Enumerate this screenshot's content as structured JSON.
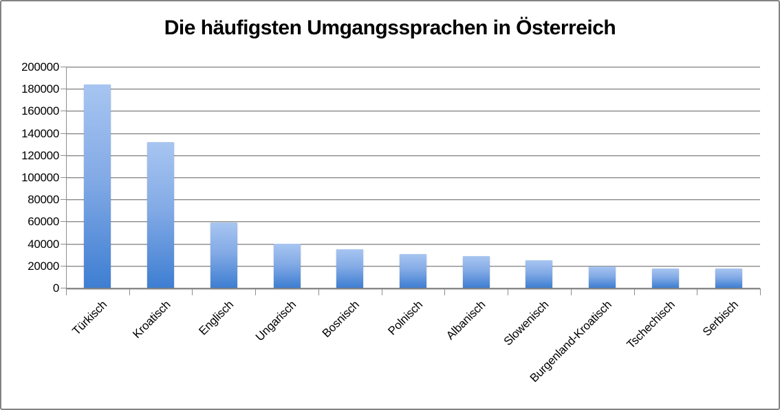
{
  "title": "Die häufigsten Umgangssprachen in Österreich",
  "frame_border_color": "#828282",
  "gridline_color": "#8c8c8c",
  "bar_color_top": "#a7c5f1",
  "bar_color_bottom": "#3e7ed2",
  "chart_data": {
    "type": "bar",
    "title": "Die häufigsten Umgangssprachen in Österreich",
    "categories": [
      "Türkisch",
      "Kroatisch",
      "Englisch",
      "Ungarisch",
      "Bosnisch",
      "Polnisch",
      "Albanisch",
      "Slowenisch",
      "Burgenland-Kroatisch",
      "Tschechisch",
      "Serbisch"
    ],
    "values": [
      184000,
      131500,
      59000,
      40000,
      35000,
      30500,
      28500,
      25000,
      19500,
      17500,
      17500
    ],
    "xlabel": "",
    "ylabel": "",
    "ylim": [
      0,
      200000
    ],
    "ytick_step": 20000,
    "ytick_labels": [
      "0",
      "20000",
      "40000",
      "60000",
      "80000",
      "100000",
      "120000",
      "140000",
      "160000",
      "180000",
      "200000"
    ],
    "grid": true,
    "legend": false,
    "label_rotation_deg": 45
  }
}
